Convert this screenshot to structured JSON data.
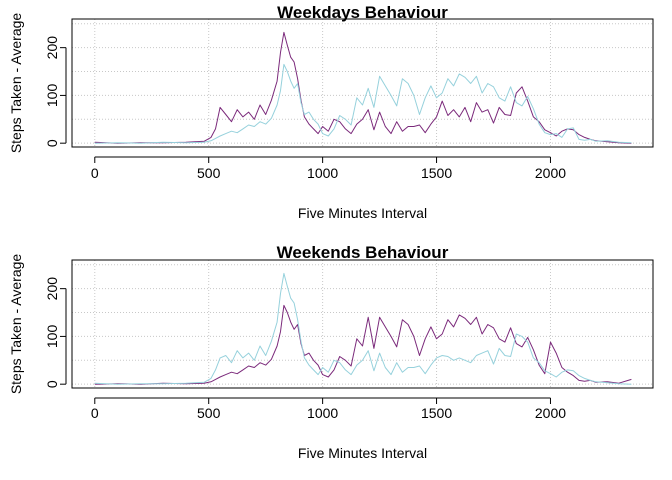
{
  "chart_data": [
    {
      "type": "line",
      "title": "Weekdays Behaviour",
      "xlabel": "Five Minutes Interval",
      "ylabel": "Steps Taken - Average",
      "xlim": [
        -100,
        2450
      ],
      "ylim": [
        -8,
        260
      ],
      "xticks": [
        0,
        500,
        1000,
        1500,
        2000
      ],
      "yticks": [
        0,
        100,
        200
      ],
      "grid": true,
      "series": [
        {
          "color": "#7b2a7b",
          "x": [
            0,
            100,
            200,
            300,
            400,
            480,
            510,
            530,
            550,
            575,
            600,
            625,
            650,
            675,
            700,
            725,
            750,
            775,
            800,
            815,
            830,
            845,
            860,
            875,
            890,
            905,
            920,
            940,
            960,
            980,
            1000,
            1025,
            1050,
            1075,
            1100,
            1125,
            1150,
            1175,
            1200,
            1225,
            1250,
            1275,
            1300,
            1325,
            1350,
            1375,
            1400,
            1425,
            1450,
            1475,
            1500,
            1525,
            1550,
            1575,
            1600,
            1625,
            1650,
            1675,
            1700,
            1725,
            1750,
            1775,
            1800,
            1825,
            1850,
            1875,
            1900,
            1925,
            1950,
            1975,
            2000,
            2025,
            2050,
            2075,
            2100,
            2125,
            2150,
            2175,
            2200,
            2250,
            2300,
            2355
          ],
          "y": [
            2,
            0,
            1,
            1,
            2,
            4,
            12,
            30,
            75,
            60,
            45,
            70,
            55,
            65,
            50,
            80,
            60,
            90,
            130,
            190,
            232,
            205,
            180,
            170,
            135,
            90,
            55,
            40,
            30,
            20,
            35,
            25,
            50,
            45,
            30,
            20,
            40,
            50,
            70,
            28,
            65,
            35,
            20,
            45,
            25,
            35,
            35,
            38,
            22,
            40,
            55,
            88,
            58,
            70,
            55,
            75,
            45,
            85,
            65,
            70,
            42,
            75,
            60,
            58,
            105,
            118,
            88,
            55,
            45,
            28,
            22,
            15,
            25,
            30,
            28,
            18,
            12,
            8,
            5,
            3,
            1,
            0
          ]
        },
        {
          "color": "#96d1dc",
          "x": [
            0,
            100,
            200,
            300,
            400,
            480,
            510,
            530,
            550,
            575,
            600,
            625,
            650,
            675,
            700,
            725,
            750,
            775,
            800,
            815,
            830,
            845,
            860,
            875,
            890,
            905,
            920,
            940,
            960,
            980,
            1000,
            1025,
            1050,
            1075,
            1100,
            1125,
            1150,
            1175,
            1200,
            1225,
            1250,
            1275,
            1300,
            1325,
            1350,
            1375,
            1400,
            1425,
            1450,
            1475,
            1500,
            1525,
            1550,
            1575,
            1600,
            1625,
            1650,
            1675,
            1700,
            1725,
            1750,
            1775,
            1800,
            1825,
            1850,
            1875,
            1900,
            1925,
            1950,
            1975,
            2000,
            2025,
            2050,
            2075,
            2100,
            2125,
            2150,
            2175,
            2200,
            2250,
            2300,
            2355
          ],
          "y": [
            0,
            1,
            0,
            2,
            1,
            2,
            5,
            10,
            15,
            20,
            25,
            22,
            30,
            38,
            35,
            45,
            40,
            52,
            80,
            110,
            165,
            150,
            130,
            115,
            125,
            85,
            60,
            65,
            50,
            40,
            20,
            15,
            30,
            58,
            50,
            38,
            95,
            80,
            115,
            75,
            140,
            120,
            100,
            78,
            135,
            125,
            100,
            60,
            95,
            120,
            95,
            105,
            135,
            120,
            145,
            138,
            125,
            140,
            105,
            125,
            118,
            95,
            88,
            118,
            85,
            78,
            98,
            72,
            40,
            22,
            18,
            20,
            12,
            30,
            32,
            8,
            6,
            8,
            4,
            5,
            2,
            1
          ]
        }
      ]
    },
    {
      "type": "line",
      "title": "Weekends Behaviour",
      "xlabel": "Five Minutes Interval",
      "ylabel": "Steps Taken - Average",
      "xlim": [
        -100,
        2450
      ],
      "ylim": [
        -8,
        260
      ],
      "xticks": [
        0,
        500,
        1000,
        1500,
        2000
      ],
      "yticks": [
        0,
        100,
        200
      ],
      "grid": true,
      "series": [
        {
          "color": "#7b2a7b",
          "x": [
            0,
            100,
            200,
            300,
            400,
            480,
            510,
            530,
            550,
            575,
            600,
            625,
            650,
            675,
            700,
            725,
            750,
            775,
            800,
            815,
            830,
            845,
            860,
            875,
            890,
            905,
            920,
            940,
            960,
            980,
            1000,
            1025,
            1050,
            1075,
            1100,
            1125,
            1150,
            1175,
            1200,
            1225,
            1250,
            1275,
            1300,
            1325,
            1350,
            1375,
            1400,
            1425,
            1450,
            1475,
            1500,
            1525,
            1550,
            1575,
            1600,
            1625,
            1650,
            1675,
            1700,
            1725,
            1750,
            1775,
            1800,
            1825,
            1850,
            1875,
            1900,
            1925,
            1950,
            1975,
            2000,
            2025,
            2050,
            2075,
            2100,
            2125,
            2150,
            2175,
            2200,
            2250,
            2300,
            2355
          ],
          "y": [
            0,
            1,
            0,
            2,
            1,
            2,
            5,
            10,
            15,
            20,
            25,
            22,
            30,
            38,
            35,
            45,
            40,
            52,
            80,
            110,
            165,
            150,
            130,
            115,
            125,
            85,
            60,
            65,
            50,
            40,
            20,
            15,
            30,
            58,
            50,
            38,
            95,
            80,
            140,
            75,
            140,
            120,
            100,
            78,
            135,
            125,
            100,
            60,
            95,
            120,
            95,
            105,
            135,
            120,
            145,
            138,
            125,
            140,
            105,
            125,
            118,
            95,
            88,
            118,
            85,
            78,
            98,
            72,
            40,
            22,
            88,
            65,
            35,
            25,
            18,
            8,
            6,
            8,
            4,
            5,
            2,
            10
          ]
        },
        {
          "color": "#96d1dc",
          "x": [
            0,
            100,
            200,
            300,
            400,
            480,
            510,
            530,
            550,
            575,
            600,
            625,
            650,
            675,
            700,
            725,
            750,
            775,
            800,
            815,
            830,
            845,
            860,
            875,
            890,
            905,
            920,
            940,
            960,
            980,
            1000,
            1025,
            1050,
            1075,
            1100,
            1125,
            1150,
            1175,
            1200,
            1225,
            1250,
            1275,
            1300,
            1325,
            1350,
            1375,
            1400,
            1425,
            1450,
            1475,
            1500,
            1525,
            1550,
            1575,
            1600,
            1625,
            1650,
            1675,
            1700,
            1725,
            1750,
            1775,
            1800,
            1825,
            1850,
            1875,
            1900,
            1925,
            1950,
            1975,
            2000,
            2025,
            2050,
            2075,
            2100,
            2125,
            2150,
            2175,
            2200,
            2250,
            2300,
            2355
          ],
          "y": [
            2,
            0,
            1,
            1,
            2,
            4,
            12,
            30,
            55,
            60,
            45,
            70,
            55,
            65,
            50,
            80,
            60,
            90,
            130,
            190,
            232,
            205,
            180,
            170,
            135,
            90,
            55,
            40,
            30,
            20,
            35,
            25,
            50,
            45,
            30,
            20,
            40,
            50,
            70,
            28,
            65,
            35,
            20,
            45,
            25,
            35,
            35,
            38,
            22,
            40,
            55,
            60,
            58,
            50,
            55,
            50,
            45,
            60,
            65,
            70,
            42,
            75,
            60,
            58,
            105,
            100,
            88,
            55,
            45,
            28,
            22,
            15,
            25,
            30,
            28,
            18,
            12,
            8,
            5,
            3,
            1,
            0
          ]
        }
      ]
    }
  ]
}
